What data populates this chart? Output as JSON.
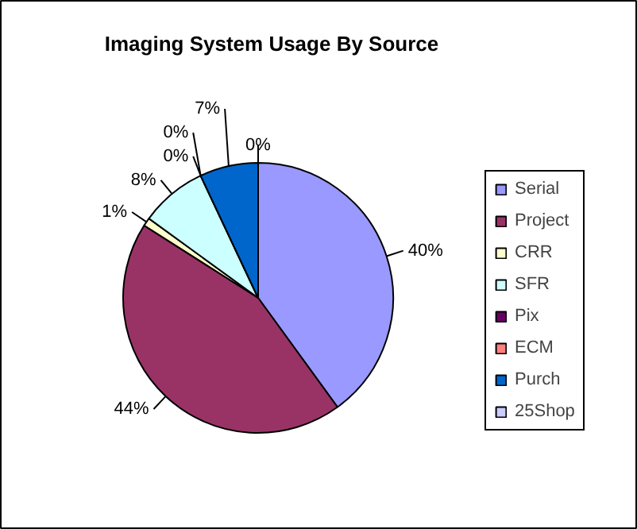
{
  "chart_data": {
    "type": "pie",
    "title": "Imaging System Usage By Source",
    "categories": [
      "Serial",
      "Project",
      "CRR",
      "SFR",
      "Pix",
      "ECM",
      "Purch",
      "25Shop"
    ],
    "values": [
      40,
      44,
      1,
      8,
      0,
      0,
      7,
      0
    ],
    "colors": [
      "#9999ff",
      "#993366",
      "#ffffcc",
      "#ccffff",
      "#660066",
      "#ff8080",
      "#0066cc",
      "#ccccff"
    ],
    "value_labels": [
      "40%",
      "44%",
      "1%",
      "8%",
      "0%",
      "0%",
      "7%",
      "0%"
    ],
    "legend": "right"
  }
}
